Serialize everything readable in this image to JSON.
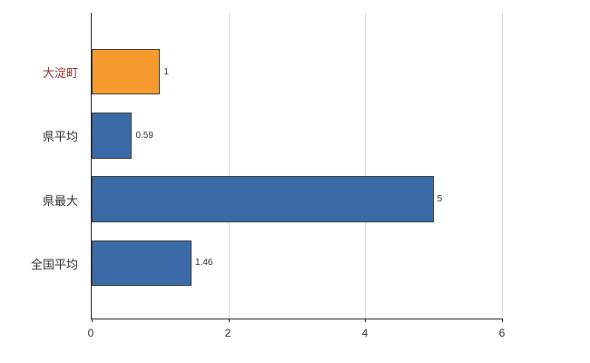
{
  "chart_data": {
    "type": "bar",
    "orientation": "horizontal",
    "title": "",
    "xlabel": "",
    "ylabel": "",
    "categories": [
      "大淀町",
      "県平均",
      "県最大",
      "全国平均"
    ],
    "values": [
      1,
      0.59,
      5,
      1.46
    ],
    "value_labels": [
      "1",
      "0.59",
      "5",
      "1.46"
    ],
    "bar_colors": [
      "#f49a2e",
      "#3a6aa8",
      "#3a6aa8",
      "#3a6aa8"
    ],
    "category_colors": [
      "#993333",
      "#333333",
      "#333333",
      "#333333"
    ],
    "bar_border_color": "#3f3f3f",
    "xlim": [
      0,
      6
    ],
    "xticks": [
      0,
      2,
      4,
      6
    ],
    "xtick_labels": [
      "0",
      "2",
      "4",
      "6"
    ],
    "grid": "vertical",
    "gridline_color": "#d9d9d9",
    "legend": "none",
    "background_color": "#ffffff"
  }
}
